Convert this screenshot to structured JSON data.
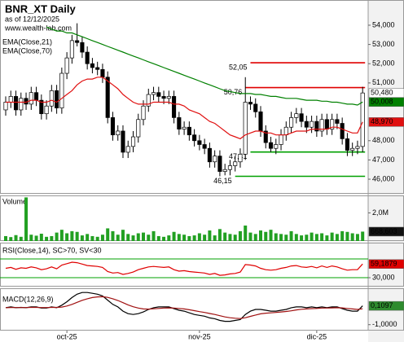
{
  "chart_data": [
    {
      "type": "candlestick",
      "title": "BNR_XT Daily",
      "subtitle": "as of 12/12/2025",
      "source": "www.wealth-lab.com",
      "open": [
        49.6,
        50.0,
        50.3,
        49.6,
        50.2,
        49.9,
        50.5,
        50.1,
        49.4,
        49.8,
        50.6,
        49.7,
        51.5,
        52.3,
        53.2,
        53.1,
        52.6,
        52.0,
        51.8,
        51.7,
        51.3,
        49.2,
        48.3,
        48.5,
        47.4,
        47.7,
        48.2,
        49.1,
        49.8,
        50.4,
        50.5,
        50.3,
        50.2,
        50.3,
        49.2,
        48.6,
        48.7,
        48.3,
        48.0,
        47.8,
        47.6,
        46.9,
        47.2,
        46.4,
        46.5,
        46.7,
        46.9,
        47.3,
        50.0,
        49.9,
        49.5,
        48.5,
        47.9,
        47.6,
        47.8,
        48.3,
        48.7,
        49.2,
        49.4,
        49.0,
        48.7,
        49.0,
        48.5,
        49.1,
        48.6,
        49.1,
        48.9,
        48.1,
        47.5,
        47.6,
        47.7
      ],
      "high": [
        50.3,
        50.6,
        50.6,
        50.5,
        50.5,
        50.8,
        50.8,
        50.4,
        50.1,
        50.9,
        50.9,
        51.8,
        52.6,
        53.5,
        54.1,
        53.4,
        52.9,
        52.3,
        52.1,
        52.0,
        51.6,
        49.5,
        48.8,
        48.8,
        48.0,
        48.5,
        49.4,
        50.1,
        50.7,
        50.8,
        50.8,
        50.6,
        50.6,
        50.6,
        49.5,
        49.0,
        49.0,
        48.6,
        48.3,
        48.1,
        47.9,
        47.5,
        47.5,
        46.8,
        47.0,
        47.2,
        47.6,
        51.3,
        50.3,
        50.2,
        49.8,
        48.8,
        48.2,
        48.1,
        48.6,
        49.0,
        49.5,
        49.7,
        49.7,
        49.3,
        49.3,
        49.3,
        49.4,
        49.4,
        49.4,
        49.4,
        49.2,
        48.4,
        47.9,
        48.0,
        50.8
      ],
      "low": [
        49.3,
        49.7,
        49.3,
        49.3,
        49.6,
        49.6,
        49.8,
        49.1,
        49.1,
        49.5,
        49.4,
        49.4,
        51.2,
        52.0,
        52.9,
        52.3,
        51.7,
        51.5,
        51.4,
        51.0,
        48.9,
        48.0,
        48.0,
        47.1,
        47.1,
        47.4,
        47.9,
        48.8,
        49.5,
        50.1,
        50.0,
        49.9,
        49.9,
        48.9,
        48.3,
        48.3,
        48.0,
        47.7,
        47.5,
        47.3,
        46.6,
        46.6,
        46.15,
        46.2,
        46.2,
        46.4,
        46.6,
        47.0,
        49.6,
        49.2,
        48.2,
        47.6,
        47.41,
        47.3,
        47.5,
        48.0,
        48.4,
        48.9,
        48.7,
        48.4,
        48.4,
        48.2,
        48.2,
        48.3,
        48.3,
        48.6,
        47.8,
        47.2,
        47.2,
        47.3,
        47.4
      ],
      "close": [
        50.0,
        50.3,
        49.6,
        50.2,
        49.9,
        50.5,
        50.1,
        49.4,
        49.8,
        50.6,
        49.7,
        51.5,
        52.3,
        53.2,
        53.1,
        52.6,
        52.0,
        51.8,
        51.7,
        51.3,
        49.2,
        48.3,
        48.5,
        47.4,
        47.7,
        48.2,
        49.1,
        49.8,
        50.4,
        50.5,
        50.3,
        50.2,
        50.3,
        49.2,
        48.6,
        48.7,
        48.3,
        48.0,
        47.8,
        47.6,
        46.9,
        47.2,
        46.4,
        46.5,
        46.7,
        46.9,
        47.3,
        50.0,
        49.9,
        49.5,
        48.5,
        47.9,
        47.6,
        47.8,
        48.3,
        48.7,
        49.2,
        49.4,
        49.0,
        48.7,
        49.0,
        48.5,
        49.1,
        48.6,
        49.1,
        48.9,
        48.1,
        47.5,
        47.6,
        47.7,
        50.48
      ],
      "close_label": "50,480",
      "series": [
        {
          "name": "EMA(Close,21)",
          "color": "#e01010",
          "last_label": "48,970",
          "values": [
            50.0,
            50.0,
            50.0,
            50.0,
            50.0,
            50.1,
            50.1,
            50.0,
            50.0,
            50.1,
            50.0,
            50.2,
            50.4,
            50.6,
            50.9,
            51.1,
            51.2,
            51.2,
            51.3,
            51.3,
            51.1,
            50.9,
            50.7,
            50.4,
            50.2,
            50.0,
            49.9,
            49.9,
            49.9,
            50.0,
            50.0,
            50.0,
            50.0,
            49.9,
            49.9,
            49.8,
            49.6,
            49.5,
            49.4,
            49.2,
            49.0,
            48.9,
            48.7,
            48.5,
            48.3,
            48.2,
            48.1,
            48.3,
            48.4,
            48.5,
            48.5,
            48.4,
            48.4,
            48.3,
            48.3,
            48.3,
            48.4,
            48.5,
            48.5,
            48.5,
            48.6,
            48.6,
            48.6,
            48.6,
            48.7,
            48.7,
            48.6,
            48.5,
            48.4,
            48.4,
            48.97
          ]
        },
        {
          "name": "EMA(Close,70)",
          "color": "#008000",
          "last_label": "50,008",
          "values": [
            null,
            null,
            null,
            null,
            null,
            null,
            null,
            null,
            53.9,
            53.8,
            53.7,
            53.7,
            53.6,
            53.6,
            53.5,
            53.4,
            53.3,
            53.2,
            53.1,
            53.0,
            52.9,
            52.8,
            52.7,
            52.6,
            52.5,
            52.4,
            52.3,
            52.2,
            52.1,
            52.0,
            51.9,
            51.8,
            51.7,
            51.6,
            51.5,
            51.4,
            51.3,
            51.2,
            51.1,
            51.0,
            50.9,
            50.8,
            50.7,
            50.6,
            50.55,
            50.5,
            50.45,
            50.45,
            50.45,
            50.4,
            50.4,
            50.35,
            50.3,
            50.3,
            50.25,
            50.2,
            50.2,
            50.2,
            50.15,
            50.1,
            50.1,
            50.1,
            50.05,
            50.05,
            50.0,
            50.0,
            49.95,
            49.9,
            49.9,
            49.85,
            50.008
          ]
        }
      ],
      "levels": [
        {
          "value": 52.05,
          "label": "52,05",
          "color": "#e00000",
          "from": 48
        },
        {
          "value": 50.76,
          "label": "50,76",
          "color": "#e00000",
          "from": 47
        },
        {
          "value": 47.41,
          "label": "47,41",
          "color": "#00a000",
          "from": 48
        },
        {
          "value": 46.15,
          "label": "46,15",
          "color": "#00a000",
          "from": 45
        }
      ],
      "ylim": [
        45.24,
        55.31
      ],
      "yticks": [
        {
          "value": 46,
          "label": "46,000"
        },
        {
          "value": 47,
          "label": "47,000"
        },
        {
          "value": 48,
          "label": "48,000"
        },
        {
          "value": 51,
          "label": "51,000"
        },
        {
          "value": 52,
          "label": "52,000"
        },
        {
          "value": 53,
          "label": "53,000"
        },
        {
          "value": 54,
          "label": "54,000"
        }
      ]
    },
    {
      "type": "bar",
      "title": "Volume",
      "color": "#22a022",
      "last_label": "668,603",
      "values": [
        350000,
        280000,
        420000,
        300000,
        3100000,
        450000,
        380000,
        520000,
        300000,
        350000,
        600000,
        800000,
        550000,
        700000,
        650000,
        400000,
        500000,
        350000,
        300000,
        450000,
        900000,
        700000,
        450000,
        800000,
        500000,
        400000,
        550000,
        600000,
        450000,
        700000,
        350000,
        300000,
        400000,
        650000,
        500000,
        450000,
        350000,
        400000,
        550000,
        450000,
        750000,
        400000,
        850000,
        600000,
        500000,
        450000,
        700000,
        1100000,
        600000,
        500000,
        750000,
        650000,
        800000,
        550000,
        500000,
        450000,
        700000,
        500000,
        400000,
        450000,
        600000,
        500000,
        550000,
        400000,
        600000,
        500000,
        700000,
        650000,
        550000,
        500000,
        668603
      ],
      "ylim": [
        0,
        3240000
      ],
      "yticks": [
        {
          "value": 2000000,
          "label": "2,0M"
        }
      ]
    },
    {
      "type": "line",
      "title": "RSI(Close,14), SC>70, SV<30",
      "color": "#e00000",
      "last_label": "59,1879",
      "values": [
        50,
        52,
        48,
        51,
        50,
        53,
        51,
        47,
        49,
        53,
        49,
        57,
        60,
        63,
        62,
        59,
        56,
        55,
        54,
        52,
        43,
        40,
        41,
        37,
        39,
        42,
        47,
        50,
        53,
        54,
        53,
        52,
        53,
        47,
        44,
        45,
        43,
        42,
        41,
        40,
        37,
        39,
        35,
        36,
        38,
        39,
        42,
        58,
        57,
        55,
        50,
        47,
        46,
        47,
        50,
        52,
        55,
        56,
        53,
        52,
        54,
        51,
        55,
        52,
        55,
        53,
        49,
        46,
        47,
        47,
        59.1879
      ],
      "levels": [
        {
          "value": 70,
          "color": "#00a000"
        },
        {
          "value": 30,
          "color": "#00a000"
        }
      ],
      "ylim": [
        10.9,
        104.8
      ],
      "yticks": [
        {
          "value": 30,
          "label": "30,000"
        }
      ]
    },
    {
      "type": "line",
      "title": "MACD(12,26,9)",
      "series": [
        {
          "color": "#000000",
          "last_label": "0,1097",
          "values": [
            0.0,
            0.05,
            0.0,
            0.02,
            0.0,
            0.05,
            0.05,
            -0.02,
            -0.02,
            0.05,
            0.0,
            0.15,
            0.35,
            0.6,
            0.8,
            0.9,
            0.9,
            0.85,
            0.8,
            0.7,
            0.45,
            0.2,
            0.05,
            -0.2,
            -0.35,
            -0.4,
            -0.35,
            -0.25,
            -0.1,
            0.0,
            0.05,
            0.05,
            0.05,
            -0.05,
            -0.15,
            -0.2,
            -0.3,
            -0.4,
            -0.45,
            -0.5,
            -0.6,
            -0.65,
            -0.75,
            -0.8,
            -0.8,
            -0.75,
            -0.7,
            -0.4,
            -0.2,
            -0.1,
            -0.1,
            -0.15,
            -0.2,
            -0.2,
            -0.15,
            -0.1,
            0.0,
            0.05,
            0.05,
            0.0,
            0.05,
            0.0,
            0.05,
            0.0,
            0.05,
            0.05,
            -0.05,
            -0.15,
            -0.2,
            -0.2,
            0.1097
          ]
        },
        {
          "color": "#a01010",
          "values": [
            0,
            0.01,
            0.01,
            0.01,
            0.01,
            0.02,
            0.02,
            0.01,
            0.01,
            0.02,
            0.02,
            0.04,
            0.1,
            0.2,
            0.32,
            0.44,
            0.53,
            0.6,
            0.64,
            0.65,
            0.61,
            0.53,
            0.43,
            0.3,
            0.17,
            0.06,
            -0.02,
            -0.07,
            -0.08,
            -0.06,
            -0.04,
            -0.02,
            -0.01,
            -0.02,
            -0.04,
            -0.07,
            -0.12,
            -0.17,
            -0.23,
            -0.28,
            -0.34,
            -0.4,
            -0.47,
            -0.54,
            -0.59,
            -0.62,
            -0.64,
            -0.59,
            -0.51,
            -0.43,
            -0.36,
            -0.32,
            -0.3,
            -0.28,
            -0.25,
            -0.22,
            -0.18,
            -0.13,
            -0.09,
            -0.07,
            -0.05,
            -0.04,
            -0.02,
            -0.02,
            -0.01,
            0.0,
            -0.01,
            -0.04,
            -0.07,
            -0.1,
            -0.06
          ]
        }
      ],
      "ylim": [
        -1.35,
        1.15
      ],
      "yticks": [
        {
          "value": -1,
          "label": "-1,0000"
        }
      ],
      "xticks": [
        {
          "value": 12,
          "label": "oct-25"
        },
        {
          "value": 38,
          "label": "nov-25"
        },
        {
          "value": 61,
          "label": "dic-25"
        }
      ]
    }
  ]
}
